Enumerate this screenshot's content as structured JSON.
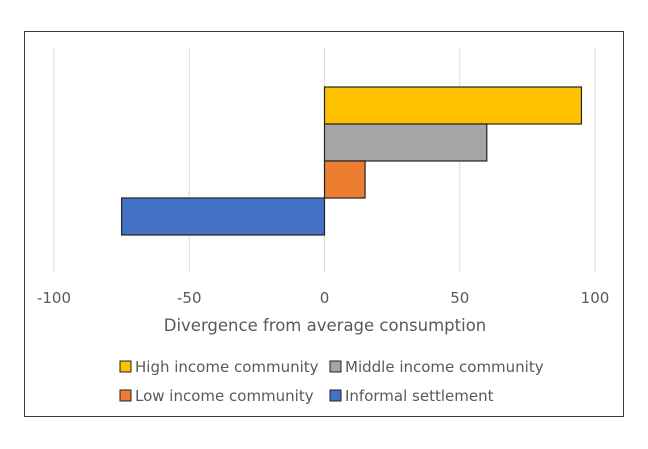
{
  "chart_data": {
    "type": "bar",
    "orientation": "horizontal",
    "title": "",
    "xlabel": "Divergence from average consumption",
    "ylabel": "",
    "xlim": [
      -110,
      110
    ],
    "xticks": [
      -100,
      -50,
      0,
      50,
      100
    ],
    "xtick_labels": [
      "-100",
      "-50",
      "0",
      "50",
      "100"
    ],
    "grid": true,
    "legend_position": "bottom",
    "series": [
      {
        "name": "High income community",
        "value": 95,
        "color": "#FFC000"
      },
      {
        "name": "Middle income community",
        "value": 60,
        "color": "#A5A5A5"
      },
      {
        "name": "Low income community",
        "value": 15,
        "color": "#ED7D31"
      },
      {
        "name": "Informal settlement",
        "value": -75,
        "color": "#4472C4"
      }
    ]
  }
}
